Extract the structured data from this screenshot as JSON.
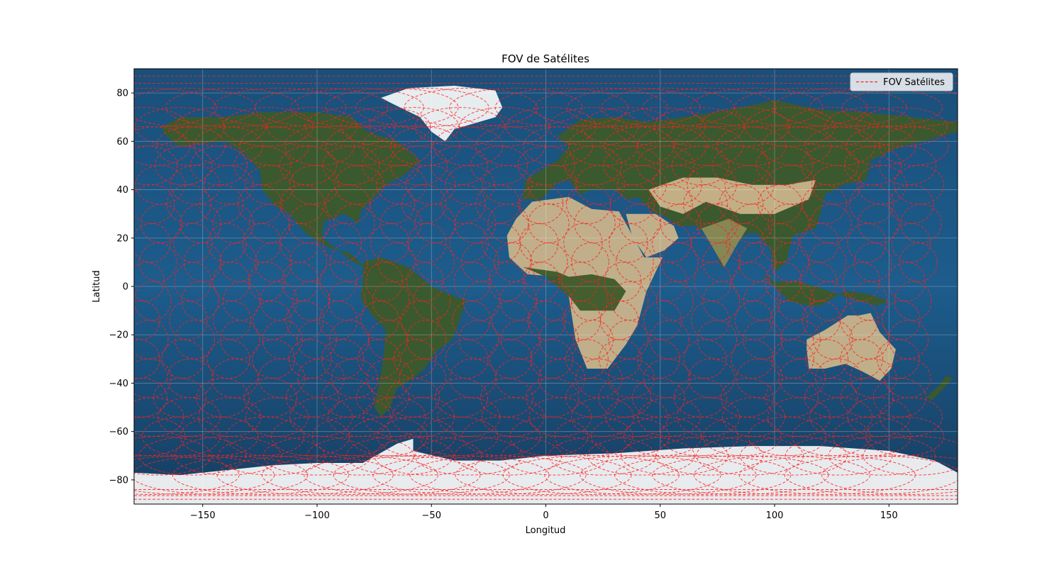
{
  "chart_data": {
    "type": "map",
    "title": "FOV de Satélites",
    "xlabel": "Longitud",
    "ylabel": "Latitud",
    "xlim": [
      -180,
      180
    ],
    "ylim": [
      -90,
      90
    ],
    "xticks": [
      -150,
      -100,
      -50,
      0,
      50,
      100,
      150
    ],
    "yticks": [
      -80,
      -60,
      -40,
      -20,
      0,
      20,
      40,
      60,
      80
    ],
    "grid": true,
    "legend": {
      "placement": "top-right",
      "entries": [
        {
          "label": "FOV Satélites",
          "style": "dashed",
          "color": "#ff2020"
        }
      ]
    },
    "background": "satellite earth imagery (equirectangular)",
    "series": [
      {
        "name": "FOV Satélites",
        "footprint_radius_deg": 8,
        "ground_track_center_longitudes": [
          -175,
          -157,
          -140,
          -122,
          -105,
          -88,
          -70,
          -55,
          -35,
          -18,
          0,
          18,
          35,
          52,
          70,
          88,
          105,
          122,
          140,
          157
        ]
      }
    ]
  },
  "colors": {
    "fov": "#ff2020",
    "ocean": "#1b5a8a",
    "deep_ocean": "#173f66",
    "land_green": "#3d5a2a",
    "desert": "#c9b48a",
    "ice": "#f2f4f6"
  }
}
